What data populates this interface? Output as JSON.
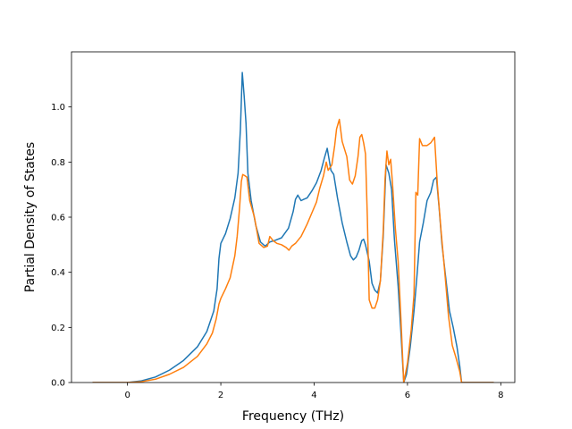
{
  "chart_data": {
    "type": "line",
    "title": "",
    "xlabel": "Frequency (THz)",
    "ylabel": "Partial Density of States",
    "xlim": [
      -1.2,
      8.3
    ],
    "ylim": [
      0,
      1.2
    ],
    "xticks": [
      0,
      2,
      4,
      6,
      8
    ],
    "yticks": [
      0.0,
      0.2,
      0.4,
      0.6,
      0.8,
      1.0
    ],
    "xtick_labels": [
      "0",
      "2",
      "4",
      "6",
      "8"
    ],
    "ytick_labels": [
      "0.0",
      "0.2",
      "0.4",
      "0.6",
      "0.8",
      "1.0"
    ],
    "grid": false,
    "legend": false,
    "series": [
      {
        "color": "#1f77b4",
        "points": [
          [
            -0.75,
            0.0
          ],
          [
            0.0,
            0.0
          ],
          [
            0.3,
            0.006
          ],
          [
            0.6,
            0.02
          ],
          [
            0.9,
            0.045
          ],
          [
            1.2,
            0.08
          ],
          [
            1.5,
            0.13
          ],
          [
            1.7,
            0.185
          ],
          [
            1.85,
            0.26
          ],
          [
            1.92,
            0.34
          ],
          [
            1.96,
            0.45
          ],
          [
            2.0,
            0.505
          ],
          [
            2.1,
            0.54
          ],
          [
            2.2,
            0.595
          ],
          [
            2.3,
            0.67
          ],
          [
            2.37,
            0.76
          ],
          [
            2.42,
            0.92
          ],
          [
            2.46,
            1.125
          ],
          [
            2.5,
            1.04
          ],
          [
            2.54,
            0.94
          ],
          [
            2.58,
            0.76
          ],
          [
            2.65,
            0.66
          ],
          [
            2.75,
            0.57
          ],
          [
            2.85,
            0.51
          ],
          [
            2.95,
            0.495
          ],
          [
            3.05,
            0.51
          ],
          [
            3.15,
            0.515
          ],
          [
            3.3,
            0.525
          ],
          [
            3.45,
            0.56
          ],
          [
            3.55,
            0.62
          ],
          [
            3.6,
            0.665
          ],
          [
            3.65,
            0.68
          ],
          [
            3.72,
            0.66
          ],
          [
            3.78,
            0.665
          ],
          [
            3.85,
            0.67
          ],
          [
            3.95,
            0.695
          ],
          [
            4.05,
            0.725
          ],
          [
            4.15,
            0.77
          ],
          [
            4.22,
            0.815
          ],
          [
            4.28,
            0.85
          ],
          [
            4.32,
            0.81
          ],
          [
            4.36,
            0.77
          ],
          [
            4.42,
            0.755
          ],
          [
            4.5,
            0.67
          ],
          [
            4.6,
            0.58
          ],
          [
            4.7,
            0.51
          ],
          [
            4.78,
            0.46
          ],
          [
            4.84,
            0.445
          ],
          [
            4.9,
            0.455
          ],
          [
            4.96,
            0.48
          ],
          [
            5.02,
            0.515
          ],
          [
            5.06,
            0.52
          ],
          [
            5.1,
            0.5
          ],
          [
            5.18,
            0.44
          ],
          [
            5.24,
            0.36
          ],
          [
            5.3,
            0.335
          ],
          [
            5.36,
            0.325
          ],
          [
            5.42,
            0.37
          ],
          [
            5.48,
            0.53
          ],
          [
            5.54,
            0.79
          ],
          [
            5.6,
            0.76
          ],
          [
            5.66,
            0.7
          ],
          [
            5.72,
            0.52
          ],
          [
            5.8,
            0.35
          ],
          [
            5.86,
            0.18
          ],
          [
            5.92,
            0.0
          ],
          [
            5.98,
            0.03
          ],
          [
            6.06,
            0.13
          ],
          [
            6.14,
            0.26
          ],
          [
            6.2,
            0.38
          ],
          [
            6.26,
            0.51
          ],
          [
            6.34,
            0.58
          ],
          [
            6.42,
            0.66
          ],
          [
            6.5,
            0.69
          ],
          [
            6.56,
            0.735
          ],
          [
            6.62,
            0.745
          ],
          [
            6.68,
            0.63
          ],
          [
            6.74,
            0.5
          ],
          [
            6.82,
            0.38
          ],
          [
            6.9,
            0.26
          ],
          [
            6.98,
            0.2
          ],
          [
            7.06,
            0.13
          ],
          [
            7.12,
            0.06
          ],
          [
            7.16,
            0.0
          ],
          [
            7.85,
            0.0
          ]
        ]
      },
      {
        "color": "#ff7f0e",
        "points": [
          [
            -0.75,
            0.0
          ],
          [
            0.0,
            0.0
          ],
          [
            0.3,
            0.003
          ],
          [
            0.6,
            0.012
          ],
          [
            0.9,
            0.03
          ],
          [
            1.2,
            0.055
          ],
          [
            1.5,
            0.095
          ],
          [
            1.7,
            0.14
          ],
          [
            1.82,
            0.18
          ],
          [
            1.9,
            0.23
          ],
          [
            1.96,
            0.285
          ],
          [
            2.0,
            0.305
          ],
          [
            2.1,
            0.34
          ],
          [
            2.2,
            0.38
          ],
          [
            2.3,
            0.46
          ],
          [
            2.35,
            0.53
          ],
          [
            2.4,
            0.63
          ],
          [
            2.44,
            0.73
          ],
          [
            2.47,
            0.755
          ],
          [
            2.52,
            0.75
          ],
          [
            2.56,
            0.745
          ],
          [
            2.62,
            0.66
          ],
          [
            2.72,
            0.6
          ],
          [
            2.82,
            0.505
          ],
          [
            2.92,
            0.49
          ],
          [
            3.0,
            0.495
          ],
          [
            3.05,
            0.53
          ],
          [
            3.12,
            0.515
          ],
          [
            3.2,
            0.505
          ],
          [
            3.3,
            0.5
          ],
          [
            3.4,
            0.49
          ],
          [
            3.46,
            0.48
          ],
          [
            3.52,
            0.495
          ],
          [
            3.6,
            0.505
          ],
          [
            3.72,
            0.53
          ],
          [
            3.85,
            0.575
          ],
          [
            3.95,
            0.615
          ],
          [
            4.05,
            0.655
          ],
          [
            4.12,
            0.705
          ],
          [
            4.2,
            0.75
          ],
          [
            4.26,
            0.8
          ],
          [
            4.3,
            0.77
          ],
          [
            4.38,
            0.79
          ],
          [
            4.44,
            0.86
          ],
          [
            4.48,
            0.92
          ],
          [
            4.54,
            0.955
          ],
          [
            4.6,
            0.875
          ],
          [
            4.7,
            0.82
          ],
          [
            4.76,
            0.735
          ],
          [
            4.82,
            0.72
          ],
          [
            4.88,
            0.75
          ],
          [
            4.94,
            0.82
          ],
          [
            4.98,
            0.89
          ],
          [
            5.02,
            0.9
          ],
          [
            5.06,
            0.87
          ],
          [
            5.1,
            0.83
          ],
          [
            5.14,
            0.6
          ],
          [
            5.18,
            0.3
          ],
          [
            5.24,
            0.27
          ],
          [
            5.3,
            0.27
          ],
          [
            5.36,
            0.3
          ],
          [
            5.42,
            0.37
          ],
          [
            5.48,
            0.55
          ],
          [
            5.52,
            0.74
          ],
          [
            5.56,
            0.84
          ],
          [
            5.6,
            0.79
          ],
          [
            5.64,
            0.81
          ],
          [
            5.68,
            0.72
          ],
          [
            5.74,
            0.56
          ],
          [
            5.8,
            0.44
          ],
          [
            5.86,
            0.23
          ],
          [
            5.92,
            0.0
          ],
          [
            6.0,
            0.07
          ],
          [
            6.08,
            0.19
          ],
          [
            6.14,
            0.32
          ],
          [
            6.18,
            0.69
          ],
          [
            6.22,
            0.68
          ],
          [
            6.26,
            0.885
          ],
          [
            6.32,
            0.86
          ],
          [
            6.42,
            0.86
          ],
          [
            6.5,
            0.87
          ],
          [
            6.58,
            0.89
          ],
          [
            6.64,
            0.72
          ],
          [
            6.72,
            0.55
          ],
          [
            6.8,
            0.4
          ],
          [
            6.88,
            0.24
          ],
          [
            6.96,
            0.135
          ],
          [
            7.04,
            0.09
          ],
          [
            7.12,
            0.04
          ],
          [
            7.16,
            0.0
          ],
          [
            7.85,
            0.0
          ]
        ]
      }
    ]
  }
}
